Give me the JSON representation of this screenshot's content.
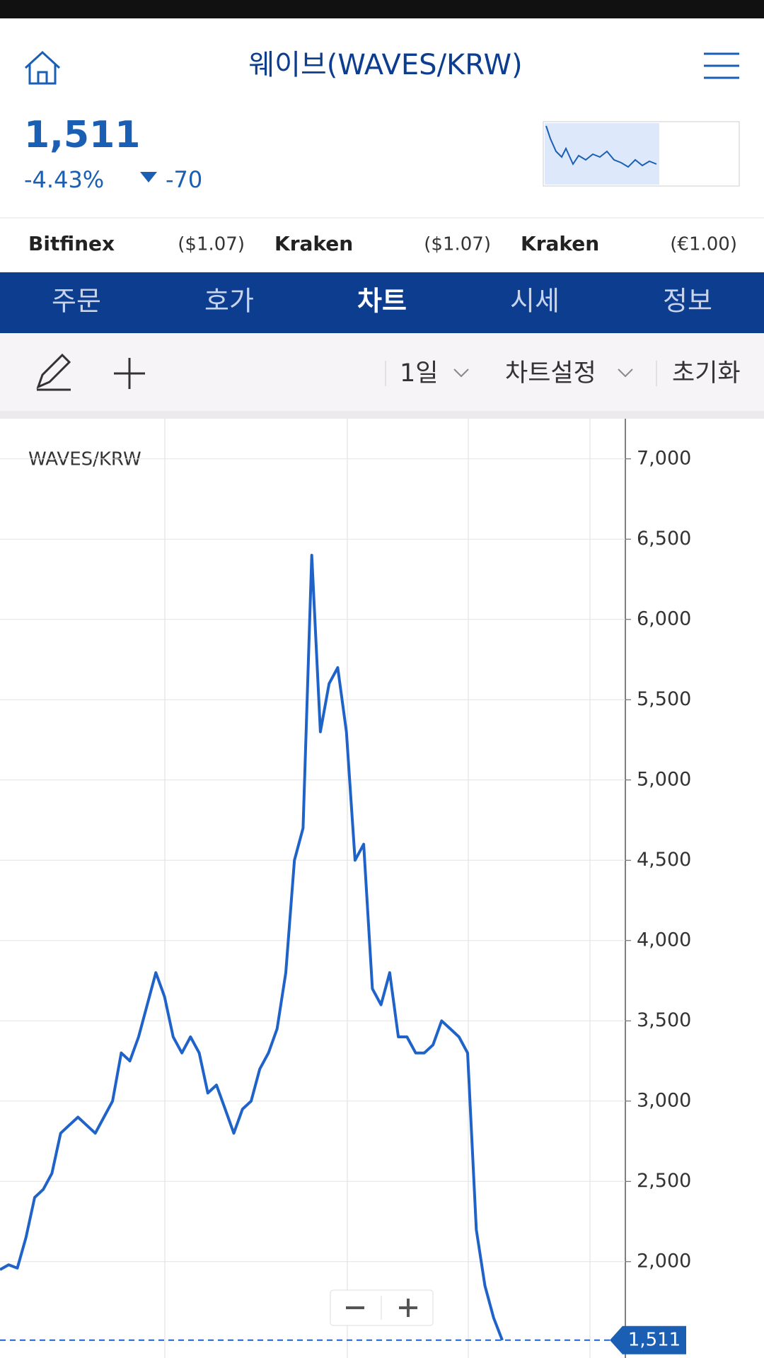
{
  "header": {
    "title": "웨이브(WAVES/KRW)"
  },
  "quote": {
    "price": "1,511",
    "change_pct": "-4.43%",
    "change": "-70"
  },
  "exchanges": [
    {
      "name": "Bitfinex",
      "price": "($1.07)"
    },
    {
      "name": "Kraken",
      "price": "($1.07)"
    },
    {
      "name": "Kraken",
      "price": "(€1.00)"
    }
  ],
  "tabs": [
    "주문",
    "호가",
    "차트",
    "시세",
    "정보"
  ],
  "toolbar": {
    "interval": "1일",
    "settings": "차트설정",
    "reset": "초기화"
  },
  "chart_data": {
    "type": "line",
    "title": "WAVES/KRW",
    "color": "#1f63c9",
    "values": [
      1950,
      1980,
      1960,
      2150,
      2400,
      2450,
      2550,
      2800,
      2850,
      2900,
      2850,
      2800,
      2900,
      3000,
      3300,
      3250,
      3400,
      3600,
      3800,
      3650,
      3400,
      3300,
      3400,
      3300,
      3050,
      3100,
      2950,
      2800,
      2950,
      3000,
      3200,
      3300,
      3450,
      3800,
      4500,
      4700,
      6400,
      5300,
      5600,
      5700,
      5300,
      4500,
      4600,
      3700,
      3600,
      3800,
      3400,
      3400,
      3300,
      3300,
      3350,
      3500,
      3450,
      3400,
      3300,
      2200,
      1850,
      1650,
      1511
    ],
    "ylim": [
      1400,
      7250
    ],
    "yticks": [
      {
        "value": 2000,
        "label": "2,000"
      },
      {
        "value": 2500,
        "label": "2,500"
      },
      {
        "value": 3000,
        "label": "3,000"
      },
      {
        "value": 3500,
        "label": "3,500"
      },
      {
        "value": 4000,
        "label": "4,000"
      },
      {
        "value": 4500,
        "label": "4,500"
      },
      {
        "value": 5000,
        "label": "5,000"
      },
      {
        "value": 5500,
        "label": "5,500"
      },
      {
        "value": 6000,
        "label": "6,000"
      },
      {
        "value": 6500,
        "label": "6,500"
      },
      {
        "value": 7000,
        "label": "7,000"
      }
    ],
    "grid": true,
    "current_price": {
      "value": 1511,
      "label": "1,511"
    }
  }
}
